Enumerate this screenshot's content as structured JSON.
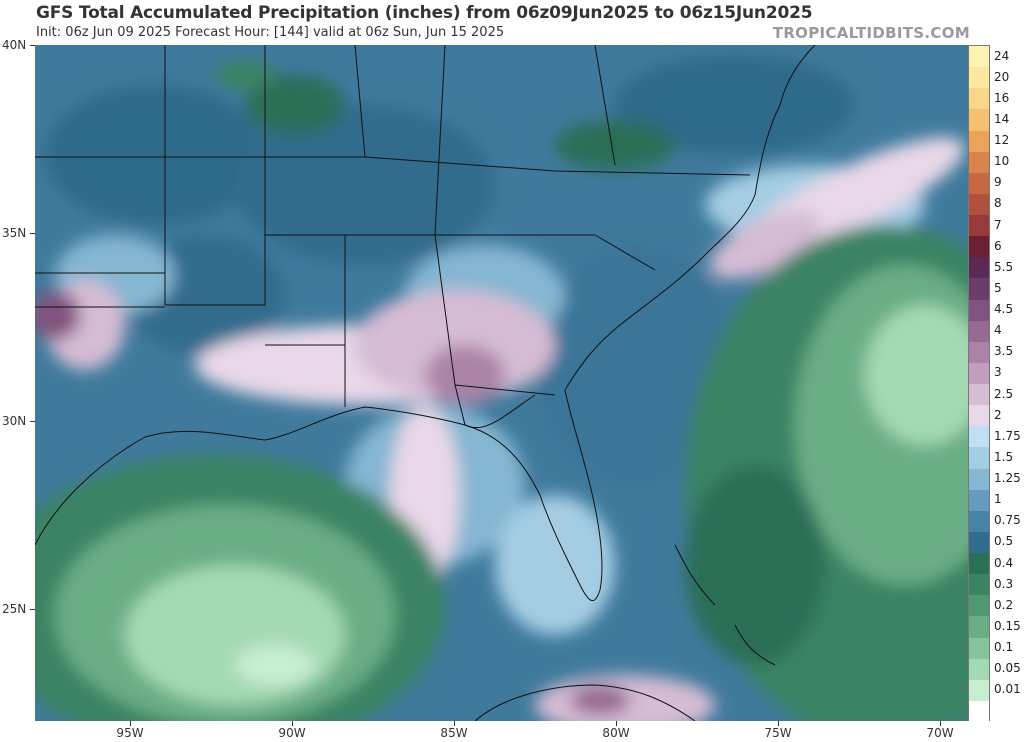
{
  "header": {
    "title": "GFS Total Accumulated Precipitation (inches) from 06z09Jun2025 to 06z15Jun2025",
    "subtitle": "Init: 06z Jun 09 2025   Forecast Hour: [144]   valid at 06z Sun, Jun 15 2025",
    "brand": "TROPICALTIDBITS.COM"
  },
  "axes": {
    "lat_labels": [
      "40N",
      "35N",
      "30N",
      "25N"
    ],
    "lon_labels": [
      "95W",
      "90W",
      "85W",
      "80W",
      "75W",
      "70W"
    ]
  },
  "colorbar": {
    "levels": [
      {
        "label": "24",
        "color": "#fbf4b4"
      },
      {
        "label": "20",
        "color": "#fae7a0"
      },
      {
        "label": "16",
        "color": "#f7d88a"
      },
      {
        "label": "14",
        "color": "#f2c272"
      },
      {
        "label": "12",
        "color": "#eba35c"
      },
      {
        "label": "10",
        "color": "#d9844c"
      },
      {
        "label": "9",
        "color": "#c76845"
      },
      {
        "label": "8",
        "color": "#b0503f"
      },
      {
        "label": "7",
        "color": "#963a3a"
      },
      {
        "label": "6",
        "color": "#6a1f33"
      },
      {
        "label": "5.5",
        "color": "#5a2a55"
      },
      {
        "label": "5",
        "color": "#6d3d6a"
      },
      {
        "label": "4.5",
        "color": "#82527f"
      },
      {
        "label": "4",
        "color": "#966a93"
      },
      {
        "label": "3.5",
        "color": "#ab83a8"
      },
      {
        "label": "3",
        "color": "#c09ebd"
      },
      {
        "label": "2.5",
        "color": "#d6bcd4"
      },
      {
        "label": "2",
        "color": "#e8d8e8"
      },
      {
        "label": "1.75",
        "color": "#bfe0f2"
      },
      {
        "label": "1.5",
        "color": "#a4cde4"
      },
      {
        "label": "1.25",
        "color": "#85b6d2"
      },
      {
        "label": "1",
        "color": "#659cbd"
      },
      {
        "label": "0.75",
        "color": "#4a82a6"
      },
      {
        "label": "0.5",
        "color": "#336c8d"
      },
      {
        "label": "0.4",
        "color": "#2c6e56"
      },
      {
        "label": "0.3",
        "color": "#3b8363"
      },
      {
        "label": "0.2",
        "color": "#519872"
      },
      {
        "label": "0.15",
        "color": "#6aae86"
      },
      {
        "label": "0.1",
        "color": "#86c49c"
      },
      {
        "label": "0.05",
        "color": "#a4d9b4"
      },
      {
        "label": "0.01",
        "color": "#c8eed2"
      },
      {
        "label": "",
        "color": "#ffffff"
      }
    ]
  }
}
